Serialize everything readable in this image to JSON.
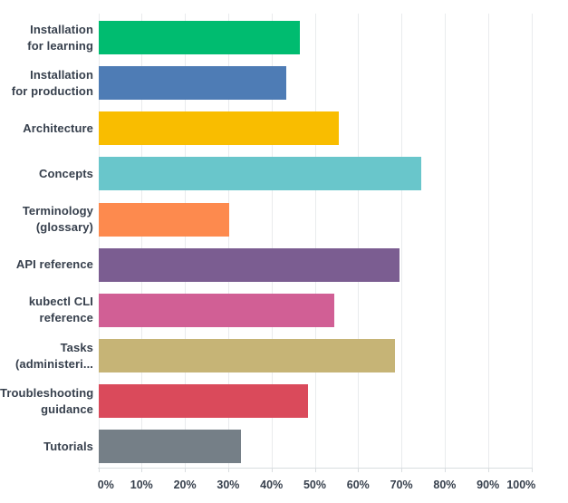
{
  "chart_data": {
    "type": "bar",
    "orientation": "horizontal",
    "title": "",
    "xlabel": "",
    "ylabel": "",
    "grid": "vertical",
    "legend": "none",
    "x_axis": {
      "min": 0,
      "max": 100,
      "tick_step": 10,
      "tick_labels": [
        "0%",
        "10%",
        "20%",
        "30%",
        "40%",
        "50%",
        "60%",
        "70%",
        "80%",
        "90%",
        "100%"
      ]
    },
    "categories": [
      "Installation for learning",
      "Installation for production",
      "Architecture",
      "Concepts",
      "Terminology (glossary)",
      "API reference",
      "kubectl CLI reference",
      "Tasks (administeri...",
      "Troubleshooting guidance",
      "Tutorials"
    ],
    "category_label_lines": [
      [
        "Installation",
        "for learning"
      ],
      [
        "Installation",
        "for production"
      ],
      [
        "Architecture"
      ],
      [
        "Concepts"
      ],
      [
        "Terminology",
        "(glossary)"
      ],
      [
        "API reference"
      ],
      [
        "kubectl CLI",
        "reference"
      ],
      [
        "Tasks",
        "(administeri..."
      ],
      [
        "Troubleshooting",
        "guidance"
      ],
      [
        "Tutorials"
      ]
    ],
    "values": [
      46.5,
      43.5,
      55.5,
      74.5,
      30.3,
      69.5,
      54.5,
      68.5,
      48.5,
      33
    ],
    "unit": "%",
    "bar_colors": [
      "#00bc70",
      "#4e7cb5",
      "#f9bd00",
      "#69c6cb",
      "#fd8a4e",
      "#7b5d91",
      "#d15f95",
      "#c6b476",
      "#da4a5b",
      "#757f87"
    ]
  },
  "colors": {
    "background": "#ffffff",
    "label_text": "#37404d",
    "gridline": "#e9ebed",
    "axis_line": "#d9dde0"
  }
}
